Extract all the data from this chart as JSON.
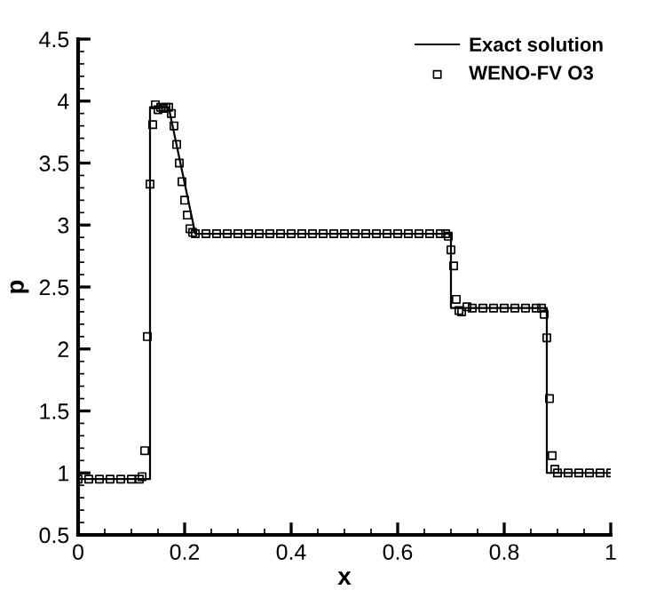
{
  "chart_data": {
    "type": "line",
    "xlabel": "x",
    "ylabel": "p",
    "xlim": [
      0,
      1
    ],
    "ylim": [
      0.5,
      4.5
    ],
    "xticks": [
      0,
      0.2,
      0.4,
      0.6,
      0.8,
      1
    ],
    "yticks": [
      0.5,
      1,
      1.5,
      2,
      2.5,
      3,
      3.5,
      4,
      4.5
    ],
    "grid": false,
    "legend": "top right",
    "series": [
      {
        "name": "Exact solution",
        "color": "#000000",
        "line_style": "solid",
        "marker": "none",
        "x": [
          0,
          0.135,
          0.135,
          0.17,
          0.22,
          0.7,
          0.7,
          0.88,
          0.88,
          1.0
        ],
        "values": [
          0.95,
          0.95,
          3.95,
          3.95,
          2.93,
          2.93,
          2.33,
          2.33,
          1.0,
          1.0
        ]
      },
      {
        "name": "WENO-FV O3",
        "type": "scatter",
        "color": "#000000",
        "marker": "square",
        "x": [
          0,
          0.02,
          0.04,
          0.06,
          0.08,
          0.1,
          0.115,
          0.12,
          0.125,
          0.13,
          0.135,
          0.14,
          0.145,
          0.15,
          0.155,
          0.16,
          0.165,
          0.17,
          0.175,
          0.18,
          0.185,
          0.19,
          0.195,
          0.2,
          0.205,
          0.21,
          0.215,
          0.22,
          0.24,
          0.26,
          0.28,
          0.3,
          0.32,
          0.34,
          0.36,
          0.38,
          0.4,
          0.42,
          0.44,
          0.46,
          0.48,
          0.5,
          0.52,
          0.54,
          0.56,
          0.58,
          0.6,
          0.62,
          0.64,
          0.66,
          0.68,
          0.69,
          0.695,
          0.7,
          0.705,
          0.71,
          0.715,
          0.72,
          0.73,
          0.74,
          0.76,
          0.78,
          0.8,
          0.82,
          0.84,
          0.86,
          0.87,
          0.875,
          0.88,
          0.885,
          0.89,
          0.895,
          0.9,
          0.92,
          0.94,
          0.96,
          0.98,
          1.0
        ],
        "values": [
          0.95,
          0.95,
          0.95,
          0.95,
          0.95,
          0.95,
          0.95,
          0.97,
          1.18,
          2.1,
          3.33,
          3.81,
          3.97,
          3.93,
          3.95,
          3.94,
          3.95,
          3.95,
          3.9,
          3.8,
          3.65,
          3.5,
          3.35,
          3.2,
          3.08,
          2.97,
          2.94,
          2.93,
          2.93,
          2.93,
          2.93,
          2.93,
          2.93,
          2.93,
          2.93,
          2.93,
          2.93,
          2.93,
          2.93,
          2.93,
          2.93,
          2.93,
          2.93,
          2.93,
          2.93,
          2.93,
          2.93,
          2.93,
          2.93,
          2.93,
          2.93,
          2.93,
          2.91,
          2.8,
          2.67,
          2.4,
          2.31,
          2.3,
          2.34,
          2.33,
          2.33,
          2.33,
          2.33,
          2.33,
          2.33,
          2.33,
          2.33,
          2.28,
          2.09,
          1.6,
          1.14,
          1.03,
          1.0,
          1.0,
          1.0,
          1.0,
          1.0,
          1.0
        ]
      }
    ]
  }
}
